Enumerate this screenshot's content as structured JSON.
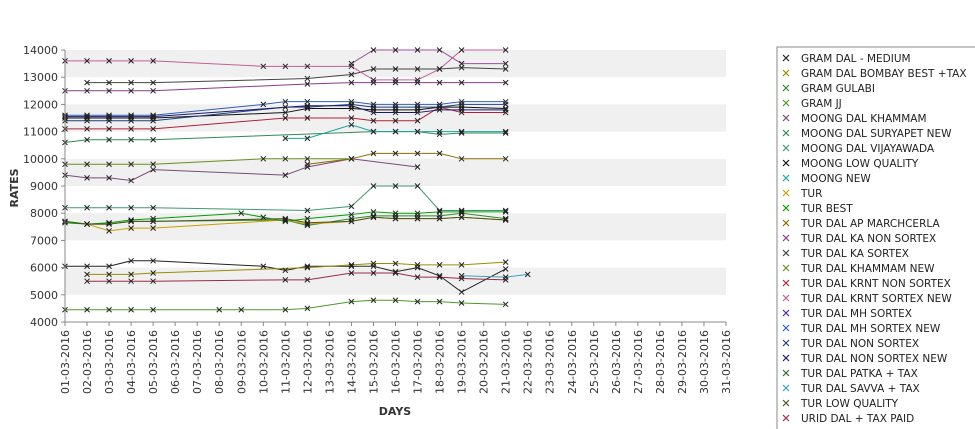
{
  "chart_data": {
    "type": "line",
    "title": "",
    "xlabel": "DAYS",
    "ylabel": "RATES",
    "ylim": [
      4000,
      14000
    ],
    "yticks": [
      4000,
      5000,
      6000,
      7000,
      8000,
      9000,
      10000,
      11000,
      12000,
      13000,
      14000
    ],
    "grid": "alternating horizontal bands",
    "legend_position": "right",
    "categories": [
      "01-03-2016",
      "02-03-2016",
      "03-03-2016",
      "04-03-2016",
      "05-03-2016",
      "06-03-2016",
      "07-03-2016",
      "08-03-2016",
      "09-03-2016",
      "10-03-2016",
      "11-03-2016",
      "12-03-2016",
      "13-03-2016",
      "14-03-2016",
      "15-03-2016",
      "16-03-2016",
      "17-03-2016",
      "18-03-2016",
      "19-03-2016",
      "20-03-2016",
      "21-03-2016",
      "22-03-2016",
      "23-03-2016",
      "24-03-2016",
      "25-03-2016",
      "26-03-2016",
      "27-03-2016",
      "28-03-2016",
      "29-03-2016",
      "30-03-2016",
      "31-03-2016"
    ],
    "series": [
      {
        "name": "GRAM DAL - MEDIUM",
        "color": "#222222",
        "values": [
          6050,
          6050,
          6050,
          6250,
          6250,
          null,
          null,
          null,
          null,
          6050,
          5900,
          6050,
          null,
          6050,
          6050,
          5850,
          6000,
          5700,
          5100,
          null,
          5950,
          null,
          null,
          null,
          null,
          null,
          null,
          null,
          null,
          null,
          null
        ]
      },
      {
        "name": "GRAM DAL BOMBAY BEST +TAX",
        "color": "#9a8c00",
        "values": [
          null,
          5750,
          5750,
          5750,
          5800,
          null,
          null,
          null,
          null,
          null,
          null,
          6000,
          null,
          6100,
          6150,
          6150,
          6100,
          6100,
          6100,
          null,
          6200,
          null,
          null,
          null,
          null,
          null,
          null,
          null,
          null,
          null,
          null
        ]
      },
      {
        "name": "GRAM GULABI",
        "color": "#2f8a2f",
        "values": [
          7700,
          7600,
          7600,
          7700,
          7700,
          null,
          null,
          null,
          null,
          null,
          7750,
          7550,
          null,
          7800,
          7900,
          7900,
          7900,
          7900,
          8000,
          null,
          7800,
          null,
          null,
          null,
          null,
          null,
          null,
          null,
          null,
          null,
          null
        ]
      },
      {
        "name": "GRAM JJ",
        "color": "#4c9a2a",
        "values": [
          4450,
          4450,
          4450,
          4450,
          4450,
          null,
          null,
          4450,
          4450,
          null,
          4450,
          4500,
          null,
          4750,
          4800,
          4800,
          4750,
          4750,
          4700,
          null,
          4650,
          null,
          null,
          null,
          null,
          null,
          null,
          null,
          null,
          null,
          null
        ]
      },
      {
        "name": "MOONG DAL KHAMMAM",
        "color": "#7a4a7a",
        "values": [
          9400,
          9300,
          9300,
          9200,
          9600,
          null,
          null,
          null,
          null,
          null,
          9400,
          9700,
          null,
          10000,
          null,
          null,
          9700,
          null,
          null,
          null,
          null,
          null,
          null,
          null,
          null,
          null,
          null,
          null,
          null,
          null,
          null
        ]
      },
      {
        "name": "MOONG DAL SURYAPET NEW",
        "color": "#2e8b57",
        "values": [
          10600,
          10700,
          10700,
          10700,
          10700,
          null,
          null,
          null,
          null,
          null,
          null,
          null,
          null,
          null,
          11000,
          11000,
          11000,
          10900,
          10950,
          null,
          10950,
          null,
          null,
          null,
          null,
          null,
          null,
          null,
          null,
          null,
          null
        ]
      },
      {
        "name": "MOONG DAL VIJAYAWADA",
        "color": "#3d9970",
        "values": [
          8200,
          8200,
          8200,
          8200,
          8200,
          null,
          null,
          null,
          null,
          null,
          null,
          8100,
          null,
          8250,
          9000,
          9000,
          9000,
          8100,
          8100,
          null,
          8100,
          null,
          null,
          null,
          null,
          null,
          null,
          null,
          null,
          null,
          null
        ]
      },
      {
        "name": "MOONG LOW QUALITY",
        "color": "#111111",
        "values": [
          11500,
          11500,
          11500,
          11500,
          11500,
          null,
          null,
          null,
          null,
          null,
          11700,
          11850,
          null,
          11850,
          11800,
          11800,
          11800,
          11900,
          11900,
          null,
          11850,
          null,
          null,
          null,
          null,
          null,
          null,
          null,
          null,
          null,
          null
        ]
      },
      {
        "name": "MOONG NEW",
        "color": "#1aa3a3",
        "values": [
          null,
          null,
          null,
          null,
          null,
          null,
          null,
          null,
          null,
          null,
          10750,
          10750,
          null,
          11250,
          11000,
          11000,
          11000,
          11000,
          11000,
          null,
          11000,
          null,
          null,
          null,
          null,
          null,
          null,
          null,
          null,
          null,
          null
        ]
      },
      {
        "name": "TUR",
        "color": "#c8a000",
        "values": [
          null,
          7600,
          7350,
          7450,
          7450,
          null,
          null,
          null,
          null,
          null,
          7750,
          7600,
          null,
          7700,
          7850,
          7800,
          7800,
          7800,
          7850,
          null,
          7750,
          null,
          null,
          null,
          null,
          null,
          null,
          null,
          null,
          null,
          null
        ]
      },
      {
        "name": "TUR BEST",
        "color": "#00a000",
        "values": [
          7650,
          7600,
          7650,
          7750,
          7800,
          null,
          null,
          null,
          8000,
          7850,
          7700,
          7800,
          null,
          7950,
          8050,
          8000,
          8000,
          8050,
          8050,
          null,
          8050,
          null,
          null,
          null,
          null,
          null,
          null,
          null,
          null,
          null,
          null
        ]
      },
      {
        "name": "TUR DAL AP MARCHCERLA",
        "color": "#8b6b00",
        "values": [
          null,
          null,
          null,
          null,
          null,
          null,
          null,
          null,
          null,
          null,
          null,
          9800,
          null,
          10000,
          10200,
          10200,
          10200,
          10200,
          10000,
          null,
          10000,
          null,
          null,
          null,
          null,
          null,
          null,
          null,
          null,
          null,
          null
        ]
      },
      {
        "name": "TUR DAL KA NON SORTEX",
        "color": "#8b3a8b",
        "values": [
          12500,
          12500,
          12500,
          12500,
          12500,
          null,
          null,
          null,
          null,
          null,
          null,
          12750,
          null,
          12800,
          12800,
          12800,
          12800,
          12800,
          12800,
          null,
          12800,
          null,
          null,
          null,
          null,
          null,
          null,
          null,
          null,
          null,
          null
        ]
      },
      {
        "name": "TUR DAL KA SORTEX",
        "color": "#444444",
        "values": [
          null,
          12800,
          12800,
          12800,
          12800,
          null,
          null,
          null,
          null,
          null,
          null,
          12950,
          null,
          13100,
          13300,
          13300,
          13300,
          13300,
          13350,
          null,
          13300,
          null,
          null,
          null,
          null,
          null,
          null,
          null,
          null,
          null,
          null
        ]
      },
      {
        "name": "TUR DAL KHAMMAM NEW",
        "color": "#6b8e23",
        "values": [
          9800,
          9800,
          9800,
          9800,
          9800,
          null,
          null,
          null,
          null,
          10000,
          10000,
          10000,
          null,
          10000,
          null,
          null,
          null,
          null,
          null,
          null,
          null,
          null,
          null,
          null,
          null,
          null,
          null,
          null,
          null,
          null,
          null
        ]
      },
      {
        "name": "TUR DAL KRNT NON SORTEX",
        "color": "#b0203a",
        "values": [
          11100,
          11100,
          11100,
          11100,
          11100,
          null,
          null,
          null,
          null,
          null,
          11500,
          11500,
          null,
          11500,
          11400,
          11400,
          11400,
          11900,
          11700,
          null,
          11700,
          null,
          null,
          null,
          null,
          null,
          null,
          null,
          null,
          null,
          null
        ]
      },
      {
        "name": "TUR DAL KRNT SORTEX NEW",
        "color": "#c0609a",
        "values": [
          13600,
          13600,
          13600,
          13600,
          13600,
          null,
          null,
          null,
          null,
          13400,
          13400,
          13400,
          null,
          13400,
          12900,
          12900,
          12900,
          13300,
          14000,
          null,
          14000,
          null,
          null,
          null,
          null,
          null,
          null,
          null,
          null,
          null,
          null
        ]
      },
      {
        "name": "TUR DAL MH SORTEX",
        "color": "#4b2aa0",
        "values": [
          null,
          null,
          null,
          null,
          null,
          null,
          null,
          null,
          null,
          null,
          null,
          null,
          null,
          null,
          null,
          null,
          null,
          null,
          null,
          null,
          null,
          null,
          null,
          null,
          null,
          null,
          null,
          null,
          null,
          null,
          null
        ]
      },
      {
        "name": "TUR DAL MH SORTEX NEW",
        "color": "#2f5fbf",
        "values": [
          11600,
          11600,
          11600,
          11600,
          11600,
          null,
          null,
          null,
          null,
          12000,
          12100,
          12100,
          null,
          12100,
          12000,
          12000,
          12000,
          12000,
          12100,
          null,
          12100,
          null,
          null,
          null,
          null,
          null,
          null,
          null,
          null,
          null,
          null
        ]
      },
      {
        "name": "TUR DAL NON SORTEX",
        "color": "#1f3f7f",
        "values": [
          11400,
          11400,
          11400,
          11400,
          11400,
          null,
          null,
          null,
          null,
          null,
          11900,
          11900,
          null,
          12000,
          11900,
          11900,
          11900,
          11900,
          12000,
          null,
          12000,
          null,
          null,
          null,
          null,
          null,
          null,
          null,
          null,
          null,
          null
        ]
      },
      {
        "name": "TUR DAL NON SORTEX NEW",
        "color": "#1a1a6e",
        "values": [
          11550,
          11550,
          11550,
          11550,
          11550,
          null,
          null,
          null,
          null,
          null,
          null,
          11950,
          null,
          11950,
          11700,
          11700,
          11700,
          11800,
          11800,
          null,
          11800,
          null,
          null,
          null,
          null,
          null,
          null,
          null,
          null,
          null,
          null
        ]
      },
      {
        "name": "TUR DAL PATKA + TAX",
        "color": "#2e6b2e",
        "values": [
          null,
          null,
          null,
          null,
          null,
          null,
          null,
          null,
          null,
          null,
          null,
          null,
          null,
          null,
          null,
          null,
          null,
          null,
          null,
          null,
          null,
          null,
          null,
          null,
          null,
          null,
          null,
          null,
          null,
          null,
          null
        ]
      },
      {
        "name": "TUR DAL SAVVA + TAX",
        "color": "#3f9fbf",
        "values": [
          null,
          null,
          null,
          null,
          null,
          null,
          null,
          null,
          null,
          null,
          null,
          null,
          null,
          null,
          null,
          null,
          null,
          null,
          5700,
          null,
          5650,
          5750,
          null,
          null,
          null,
          null,
          null,
          null,
          null,
          null,
          null
        ]
      },
      {
        "name": "TUR LOW QUALITY",
        "color": "#4b5320",
        "values": [
          7700,
          7600,
          7600,
          7700,
          7700,
          null,
          null,
          null,
          null,
          null,
          7800,
          7650,
          null,
          7700,
          7850,
          7800,
          7800,
          7800,
          7850,
          null,
          7750,
          null,
          null,
          null,
          null,
          null,
          null,
          null,
          null,
          null,
          null
        ]
      },
      {
        "name": "URID DAL + TAX PAID",
        "color": "#9a2a4a",
        "values": [
          null,
          5500,
          5500,
          5500,
          5500,
          null,
          null,
          null,
          null,
          null,
          5550,
          5550,
          null,
          5800,
          5800,
          5800,
          5650,
          5650,
          5600,
          null,
          5550,
          null,
          null,
          null,
          null,
          null,
          null,
          null,
          null,
          null,
          null
        ]
      },
      {
        "name": "",
        "color": "#a050a0",
        "values": [
          null,
          null,
          null,
          null,
          null,
          null,
          null,
          null,
          null,
          null,
          null,
          null,
          null,
          13500,
          14000,
          14000,
          14000,
          14000,
          13500,
          null,
          13500,
          null,
          null,
          null,
          null,
          null,
          null,
          null,
          null,
          null,
          null
        ]
      }
    ]
  }
}
